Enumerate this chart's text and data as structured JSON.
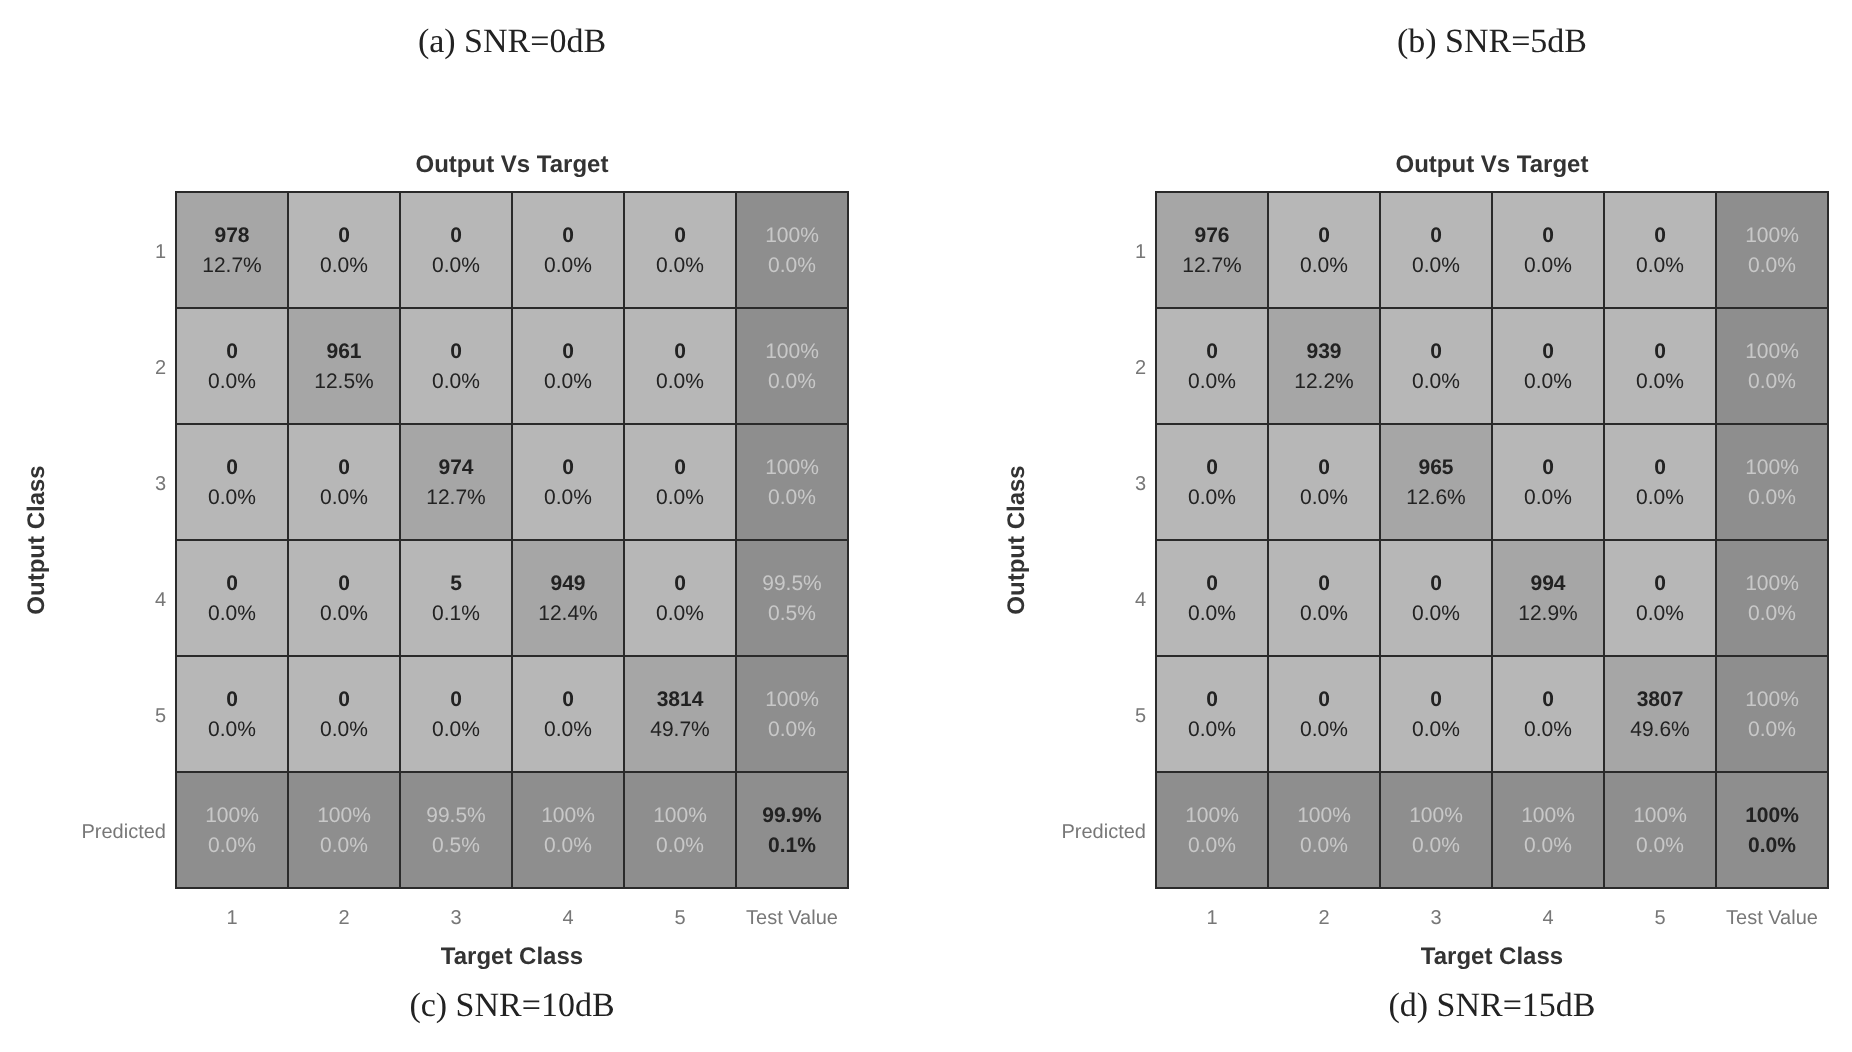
{
  "chart_data": [
    {
      "type": "heatmap",
      "title": "Output Vs Target",
      "xlabel": "Target Class",
      "ylabel": "Output Class",
      "categories": [
        "1",
        "2",
        "3",
        "4",
        "5",
        "Test Value"
      ],
      "y_categories": [
        "1",
        "2",
        "3",
        "4",
        "5",
        "Predicted"
      ],
      "cells": [
        [
          978,
          0,
          0,
          0,
          0,
          100
        ],
        [
          0,
          961,
          0,
          0,
          0,
          100
        ],
        [
          0,
          0,
          974,
          0,
          0,
          100
        ],
        [
          0,
          0,
          5,
          949,
          0,
          99.5
        ],
        [
          0,
          0,
          0,
          0,
          3814,
          100
        ],
        [
          100,
          100,
          99.5,
          100,
          100,
          99.9
        ]
      ],
      "cell_labels": [
        [
          "978",
          "0",
          "0",
          "0",
          "0",
          "100%"
        ],
        [
          "0",
          "961",
          "0",
          "0",
          "0",
          "100%"
        ],
        [
          "0",
          "0",
          "974",
          "0",
          "0",
          "100%"
        ],
        [
          "0",
          "0",
          "5",
          "949",
          "0",
          "99.5%"
        ],
        [
          "0",
          "0",
          "0",
          "0",
          "3814",
          "100%"
        ],
        [
          "100%",
          "100%",
          "99.5%",
          "100%",
          "100%",
          "99.9%"
        ]
      ],
      "annotations": [
        "(a) SNR=0dB",
        "(c) SNR=10dB",
        "12.7%",
        "0.0%",
        "0.0%",
        "0.0%",
        "0.0%",
        "0.0%",
        "0.0%",
        "12.5%",
        "0.0%",
        "0.0%",
        "0.0%",
        "0.0%",
        "0.0%",
        "0.0%",
        "12.7%",
        "0.0%",
        "0.0%",
        "0.0%",
        "0.0%",
        "0.0%",
        "0.1%",
        "12.4%",
        "0.0%",
        "0.5%",
        "0.0%",
        "0.0%",
        "0.0%",
        "0.0%",
        "49.7%",
        "0.0%",
        "0.0%",
        "0.0%",
        "0.5%",
        "0.0%",
        "0.0%",
        "0.1%"
      ]
    },
    {
      "type": "heatmap",
      "title": "Output Vs Target",
      "xlabel": "Target Class",
      "ylabel": "Output Class",
      "categories": [
        "1",
        "2",
        "3",
        "4",
        "5",
        "Test Value"
      ],
      "y_categories": [
        "1",
        "2",
        "3",
        "4",
        "5",
        "Predicted"
      ],
      "cells": [
        [
          976,
          0,
          0,
          0,
          0,
          100
        ],
        [
          0,
          939,
          0,
          0,
          0,
          100
        ],
        [
          0,
          0,
          965,
          0,
          0,
          100
        ],
        [
          0,
          0,
          0,
          994,
          0,
          100
        ],
        [
          0,
          0,
          0,
          0,
          3807,
          100
        ],
        [
          100,
          100,
          100,
          100,
          100,
          100
        ]
      ],
      "cell_labels": [
        [
          "976",
          "0",
          "0",
          "0",
          "0",
          "100%"
        ],
        [
          "0",
          "939",
          "0",
          "0",
          "0",
          "100%"
        ],
        [
          "0",
          "0",
          "965",
          "0",
          "0",
          "100%"
        ],
        [
          "0",
          "0",
          "0",
          "994",
          "0",
          "100%"
        ],
        [
          "0",
          "0",
          "0",
          "0",
          "3807",
          "100%"
        ],
        [
          "100%",
          "100%",
          "100%",
          "100%",
          "100%",
          "100%"
        ]
      ],
      "annotations": [
        "(b) SNR=5dB",
        "(d) SNR=15dB",
        "12.7%",
        "0.0%",
        "0.0%",
        "0.0%",
        "0.0%",
        "0.0%",
        "0.0%",
        "12.2%",
        "0.0%",
        "0.0%",
        "0.0%",
        "0.0%",
        "0.0%",
        "0.0%",
        "12.6%",
        "0.0%",
        "0.0%",
        "0.0%",
        "0.0%",
        "0.0%",
        "0.0%",
        "12.9%",
        "0.0%",
        "0.0%",
        "0.0%",
        "0.0%",
        "0.0%",
        "0.0%",
        "49.6%",
        "0.0%",
        "0.0%",
        "0.0%",
        "0.0%",
        "0.0%",
        "0.0%",
        "0.0%"
      ]
    }
  ]
}
